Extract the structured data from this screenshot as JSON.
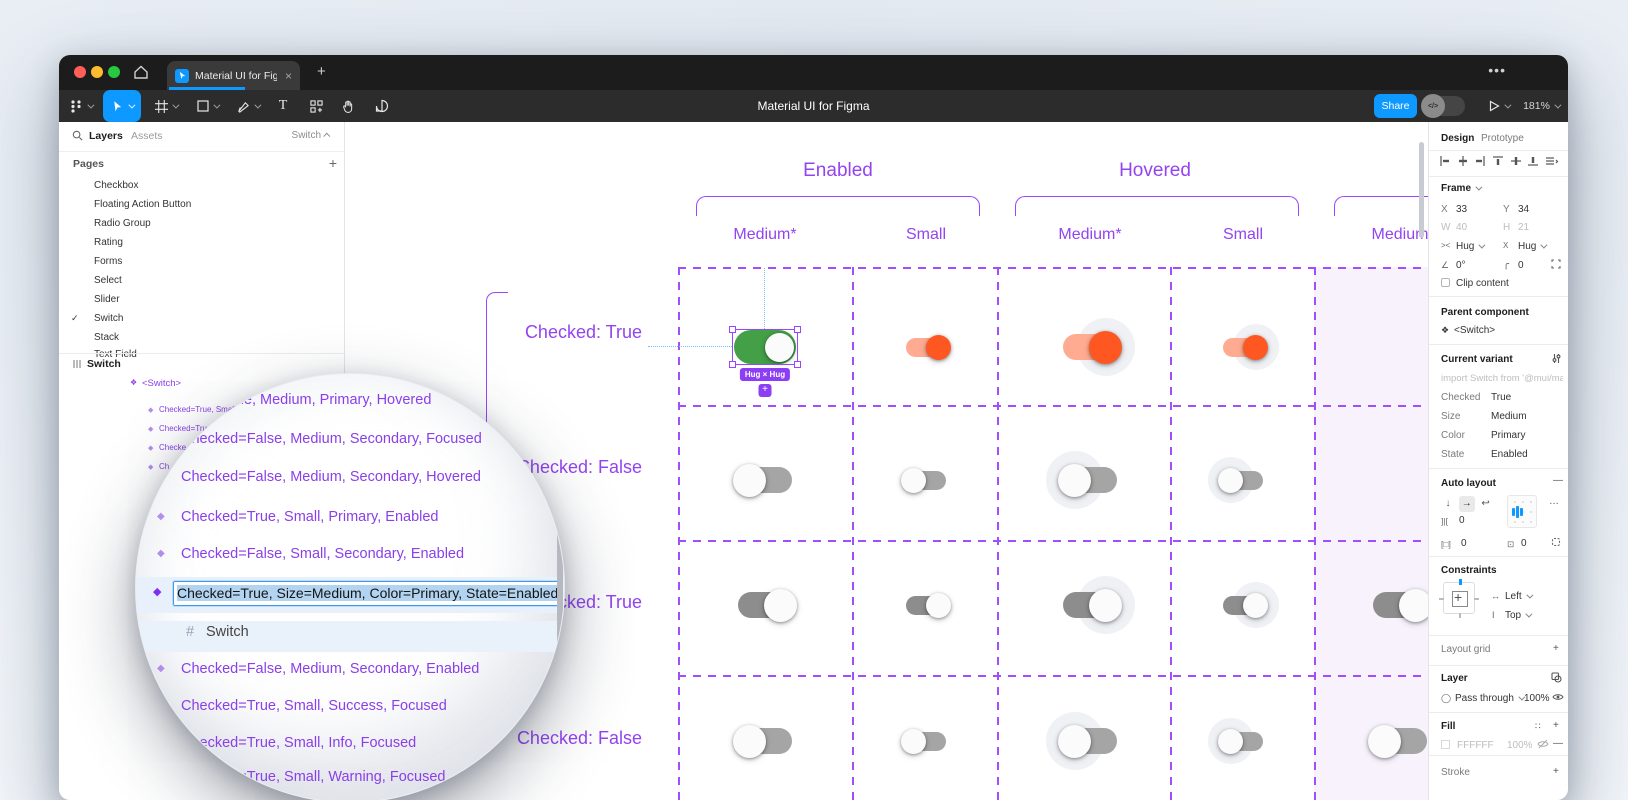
{
  "titlebar": {
    "tab_title": "Material UI for Figma"
  },
  "toolbar": {
    "title": "Material UI for Figma",
    "share": "Share",
    "zoom": "181%"
  },
  "left_panel": {
    "tabs": {
      "layers": "Layers",
      "assets": "Assets"
    },
    "filter": "Switch",
    "pages_header": "Pages",
    "pages": [
      "Checkbox",
      "Floating Action Button",
      "Radio Group",
      "Rating",
      "Forms",
      "Select",
      "Slider",
      "Switch",
      "Stack",
      "Text Field"
    ],
    "active_page": "Switch",
    "current_page": "Switch",
    "component_set": "<Switch>",
    "clipped_layers": [
      "Checked=True, Small, P",
      "Checked=Tru",
      "Checke",
      "Ch"
    ]
  },
  "loupe": {
    "items": [
      {
        "label": "Checked=True, Medium, Primary, Hovered",
        "type": "variant"
      },
      {
        "label": "Checked=False, Medium, Secondary, Focused",
        "type": "variant"
      },
      {
        "label": "Checked=False, Medium, Secondary, Hovered",
        "type": "variant"
      },
      {
        "label": "Checked=True, Small, Primary, Enabled",
        "type": "variant"
      },
      {
        "label": "Checked=False, Small, Secondary, Enabled",
        "type": "variant"
      },
      {
        "label": "Checked=True, Size=Medium, Color=Primary, State=Enabled",
        "type": "variant-editing"
      },
      {
        "label": "Switch",
        "type": "frame-child"
      },
      {
        "label": "Checked=False, Medium, Secondary, Enabled",
        "type": "variant"
      },
      {
        "label": "Checked=True, Small, Success, Focused",
        "type": "variant"
      },
      {
        "label": "Checked=True, Small, Info, Focused",
        "type": "variant"
      },
      {
        "label": "Checked=True, Small, Warning, Focused",
        "type": "variant"
      }
    ]
  },
  "canvas": {
    "group_headers": [
      "Enabled",
      "Hovered"
    ],
    "column_labels": [
      "Medium*",
      "Small",
      "Medium*",
      "Small",
      "Medium"
    ],
    "row_labels": [
      "Checked: True",
      "Checked: False",
      "Checked: True",
      "Checked: False"
    ],
    "selection_badge": "Hug × Hug",
    "accent_purple": "#9747ff",
    "switch_colors": {
      "green_track": "#43a047",
      "orange_track": "#ffab91",
      "orange_thumb": "#ff5722",
      "grey_track": "#a5a5a5",
      "grey_track_dark": "#8d8d8d",
      "thumb": "#fbfbfb"
    },
    "switches": [
      {
        "row": 0,
        "col": 0,
        "color": "green",
        "size": "medium",
        "checked": true,
        "hover": false,
        "selected": true
      },
      {
        "row": 0,
        "col": 1,
        "color": "orange",
        "size": "small",
        "checked": true,
        "hover": false
      },
      {
        "row": 0,
        "col": 2,
        "color": "orange",
        "size": "medium",
        "checked": true,
        "hover": true
      },
      {
        "row": 0,
        "col": 3,
        "color": "orange",
        "size": "small",
        "checked": true,
        "hover": true
      },
      {
        "row": 1,
        "col": 0,
        "color": "grey",
        "size": "medium",
        "checked": false,
        "hover": false
      },
      {
        "row": 1,
        "col": 1,
        "color": "grey",
        "size": "small",
        "checked": false,
        "hover": false
      },
      {
        "row": 1,
        "col": 2,
        "color": "grey",
        "size": "medium",
        "checked": false,
        "hover": true
      },
      {
        "row": 1,
        "col": 3,
        "color": "grey",
        "size": "small",
        "checked": false,
        "hover": true
      },
      {
        "row": 2,
        "col": 0,
        "color": "grey",
        "size": "medium",
        "checked": true,
        "hover": false
      },
      {
        "row": 2,
        "col": 1,
        "color": "grey",
        "size": "small",
        "checked": true,
        "hover": false
      },
      {
        "row": 2,
        "col": 2,
        "color": "grey",
        "size": "medium",
        "checked": true,
        "hover": true
      },
      {
        "row": 2,
        "col": 3,
        "color": "grey",
        "size": "small",
        "checked": true,
        "hover": true
      },
      {
        "row": 2,
        "col": 4,
        "color": "grey",
        "size": "medium",
        "checked": true,
        "hover": false
      },
      {
        "row": 3,
        "col": 0,
        "color": "grey",
        "size": "medium",
        "checked": false,
        "hover": false
      },
      {
        "row": 3,
        "col": 1,
        "color": "grey",
        "size": "small",
        "checked": false,
        "hover": false
      },
      {
        "row": 3,
        "col": 2,
        "color": "grey",
        "size": "medium",
        "checked": false,
        "hover": true
      },
      {
        "row": 3,
        "col": 3,
        "color": "grey",
        "size": "small",
        "checked": false,
        "hover": true
      },
      {
        "row": 3,
        "col": 4,
        "color": "grey",
        "size": "medium",
        "checked": false,
        "hover": false
      }
    ]
  },
  "right_panel": {
    "tabs": {
      "design": "Design",
      "prototype": "Prototype"
    },
    "frame": {
      "header": "Frame",
      "x_label": "X",
      "x": "33",
      "y_label": "Y",
      "y": "34",
      "w_label": "W",
      "w": "40",
      "h_label": "H",
      "h": "21",
      "hug_h": "Hug",
      "hug_v": "Hug",
      "rotation": "0°",
      "radius": "0",
      "clip": "Clip content"
    },
    "parent": {
      "header": "Parent component",
      "name": "<Switch>"
    },
    "variant": {
      "header": "Current variant",
      "import_hint": "import Switch from '@mui/material/S…",
      "props": [
        {
          "k": "Checked",
          "v": "True"
        },
        {
          "k": "Size",
          "v": "Medium"
        },
        {
          "k": "Color",
          "v": "Primary"
        },
        {
          "k": "State",
          "v": "Enabled"
        }
      ]
    },
    "auto_layout": {
      "header": "Auto layout",
      "gap": "0",
      "pad_h": "0",
      "pad_v": "0"
    },
    "constraints": {
      "header": "Constraints",
      "h": "Left",
      "v": "Top"
    },
    "layout_grid": {
      "header": "Layout grid"
    },
    "layer": {
      "header": "Layer",
      "blend": "Pass through",
      "opacity": "100%"
    },
    "fill": {
      "header": "Fill",
      "hex": "FFFFFF",
      "opacity": "100%"
    },
    "stroke": {
      "header": "Stroke"
    }
  }
}
